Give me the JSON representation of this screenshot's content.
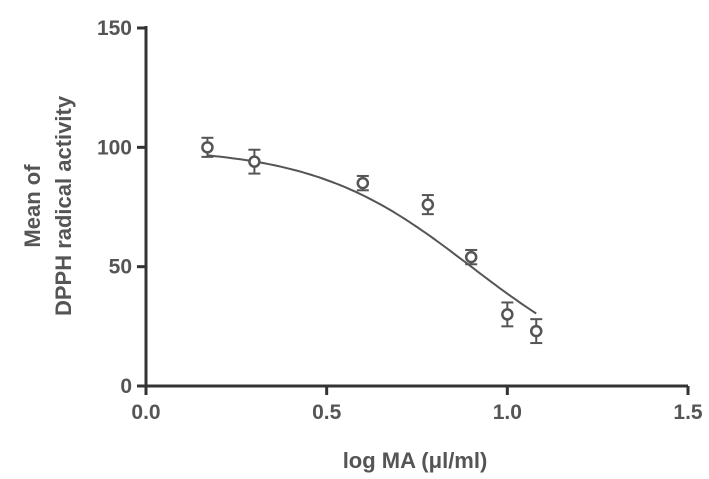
{
  "chart_data": {
    "type": "scatter",
    "xlabel": "log MA (μl/ml)",
    "ylabel_line1": "Mean of",
    "ylabel_line2": "DPPH radical activity",
    "xlim": [
      0.0,
      1.5
    ],
    "ylim": [
      0,
      150
    ],
    "x_ticks": [
      "0.0",
      "0.5",
      "1.0",
      "1.5"
    ],
    "y_ticks": [
      "0",
      "50",
      "100",
      "150"
    ],
    "x_tick_values": [
      0.0,
      0.5,
      1.0,
      1.5
    ],
    "y_tick_values": [
      0,
      50,
      100,
      150
    ],
    "grid": false,
    "points": [
      {
        "x": 0.17,
        "y": 100,
        "err": 4
      },
      {
        "x": 0.3,
        "y": 94,
        "err": 5
      },
      {
        "x": 0.6,
        "y": 85,
        "err": 3
      },
      {
        "x": 0.78,
        "y": 76,
        "err": 4
      },
      {
        "x": 0.9,
        "y": 54,
        "err": 3
      },
      {
        "x": 1.0,
        "y": 30,
        "err": 5
      },
      {
        "x": 1.08,
        "y": 23,
        "err": 5
      }
    ],
    "fit_curve": {
      "type": "sigmoidal dose-response",
      "top": 100,
      "bottom": 0,
      "log_ic50": 0.9,
      "hill_slope": -2.0,
      "x_range": [
        0.17,
        1.08
      ]
    },
    "colors": {
      "marks": "#555555",
      "axis": "#333333",
      "text": "#555555"
    }
  }
}
